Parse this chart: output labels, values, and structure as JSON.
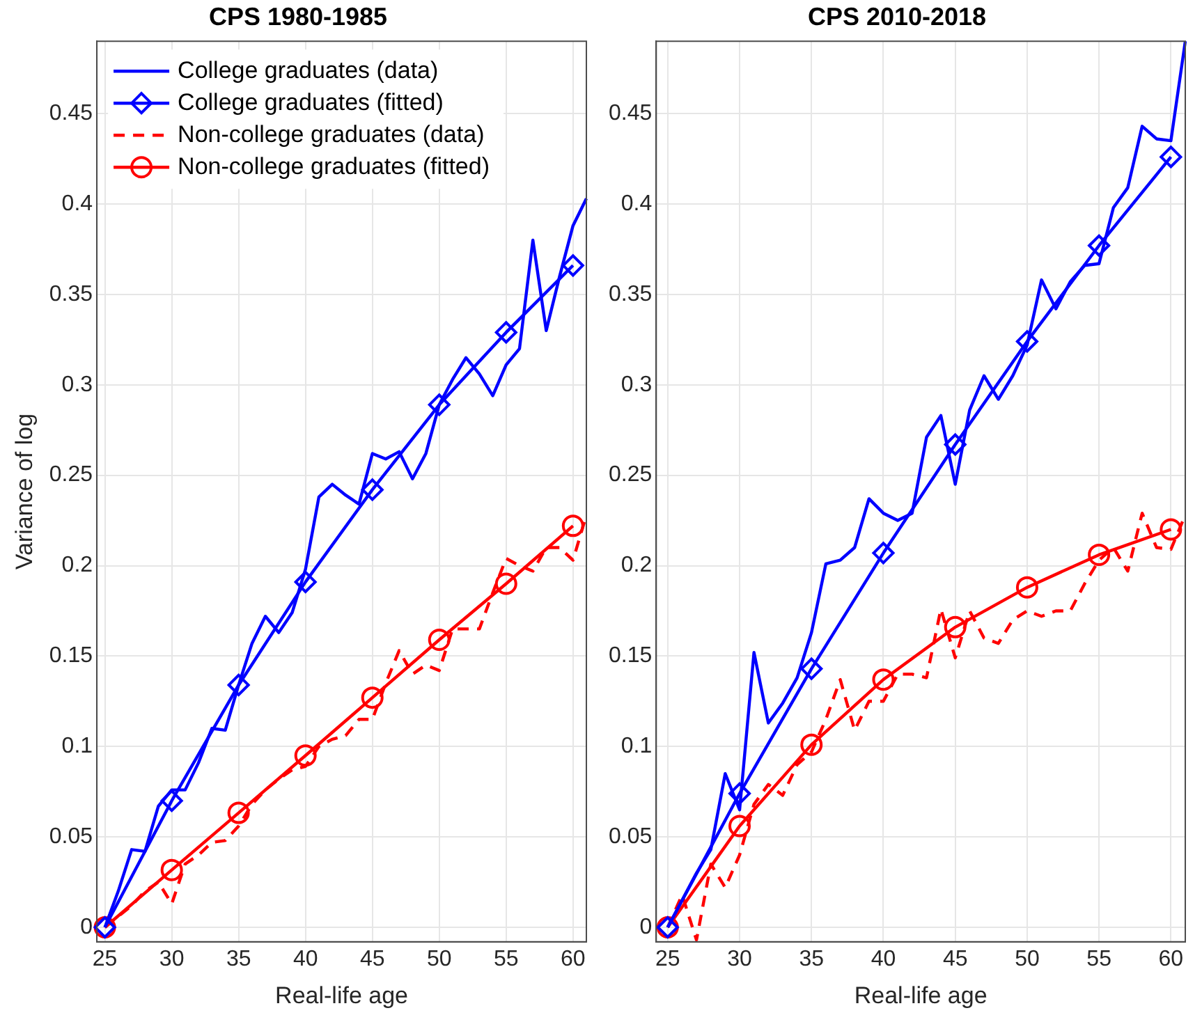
{
  "chart_data": [
    {
      "type": "line",
      "title": "CPS 1980-1985",
      "xlabel": "Real-life age",
      "ylabel": "Variance of log",
      "xlim": [
        24.4,
        61
      ],
      "ylim": [
        -0.008,
        0.49
      ],
      "xticks": [
        25,
        30,
        35,
        40,
        45,
        50,
        55,
        60
      ],
      "yticks": [
        0,
        0.05,
        0.1,
        0.15,
        0.2,
        0.25,
        0.3,
        0.35,
        0.4,
        0.45
      ],
      "grid": true,
      "legend": "top left",
      "series": [
        {
          "name": "College graduates (data)",
          "color": "#0000ff",
          "marker": "none",
          "line_style": "solid",
          "x": [
            25,
            26,
            27,
            28,
            29,
            30,
            31,
            32,
            33,
            34,
            35,
            36,
            37,
            38,
            39,
            40,
            41,
            42,
            43,
            44,
            45,
            46,
            47,
            48,
            49,
            50,
            51,
            52,
            53,
            54,
            55,
            56,
            57,
            58,
            59,
            60,
            61
          ],
          "values": [
            0,
            0.02,
            0.043,
            0.042,
            0.067,
            0.076,
            0.076,
            0.091,
            0.11,
            0.109,
            0.134,
            0.157,
            0.172,
            0.163,
            0.174,
            0.198,
            0.238,
            0.245,
            0.239,
            0.234,
            0.262,
            0.259,
            0.263,
            0.248,
            0.262,
            0.289,
            0.303,
            0.315,
            0.306,
            0.294,
            0.311,
            0.32,
            0.38,
            0.33,
            0.36,
            0.388,
            0.403
          ]
        },
        {
          "name": "College graduates (fitted)",
          "color": "#0000ff",
          "marker": "diamond",
          "line_style": "solid",
          "x": [
            25,
            30,
            35,
            40,
            45,
            50,
            55,
            60
          ],
          "values": [
            0,
            0.07,
            0.134,
            0.191,
            0.242,
            0.289,
            0.329,
            0.366
          ]
        },
        {
          "name": "Non-college graduates (data)",
          "color": "#ff0000",
          "marker": "none",
          "line_style": "dashed",
          "x": [
            25,
            26,
            27,
            28,
            29,
            30,
            31,
            32,
            33,
            34,
            35,
            36,
            37,
            38,
            39,
            40,
            41,
            42,
            43,
            44,
            45,
            46,
            47,
            48,
            49,
            50,
            51,
            52,
            53,
            54,
            55,
            56,
            57,
            58,
            59,
            60,
            61
          ],
          "values": [
            0,
            0.006,
            0.012,
            0.02,
            0.025,
            0.013,
            0.035,
            0.04,
            0.047,
            0.048,
            0.056,
            0.068,
            0.076,
            0.082,
            0.087,
            0.089,
            0.1,
            0.104,
            0.106,
            0.115,
            0.115,
            0.135,
            0.153,
            0.14,
            0.145,
            0.142,
            0.165,
            0.165,
            0.165,
            0.185,
            0.204,
            0.2,
            0.197,
            0.21,
            0.21,
            0.203,
            0.228
          ]
        },
        {
          "name": "Non-college graduates (fitted)",
          "color": "#ff0000",
          "marker": "circle",
          "line_style": "solid",
          "x": [
            25,
            30,
            35,
            40,
            45,
            50,
            55,
            60
          ],
          "values": [
            0,
            0.0317,
            0.0633,
            0.095,
            0.127,
            0.159,
            0.19,
            0.222
          ]
        }
      ]
    },
    {
      "type": "line",
      "title": "CPS 2010-2018",
      "xlabel": "Real-life age",
      "xlim": [
        24.2,
        61
      ],
      "ylim": [
        -0.008,
        0.49
      ],
      "xticks": [
        25,
        30,
        35,
        40,
        45,
        50,
        55,
        60
      ],
      "yticks": [
        0,
        0.05,
        0.1,
        0.15,
        0.2,
        0.25,
        0.3,
        0.35,
        0.4,
        0.45
      ],
      "grid": true,
      "series": [
        {
          "color": "#0000ff",
          "marker": "none",
          "line_style": "solid",
          "x": [
            25,
            26,
            27,
            28,
            29,
            30,
            31,
            32,
            33,
            34,
            35,
            36,
            37,
            38,
            39,
            40,
            41,
            42,
            43,
            44,
            45,
            46,
            47,
            48,
            49,
            50,
            51,
            52,
            53,
            54,
            55,
            56,
            57,
            58,
            59,
            60,
            61
          ],
          "values": [
            0,
            0.015,
            0.03,
            0.043,
            0.085,
            0.065,
            0.152,
            0.113,
            0.124,
            0.138,
            0.163,
            0.201,
            0.203,
            0.21,
            0.237,
            0.229,
            0.225,
            0.229,
            0.271,
            0.283,
            0.245,
            0.286,
            0.305,
            0.292,
            0.305,
            0.322,
            0.358,
            0.342,
            0.357,
            0.366,
            0.367,
            0.398,
            0.409,
            0.443,
            0.436,
            0.435,
            0.49
          ]
        },
        {
          "color": "#0000ff",
          "marker": "diamond",
          "line_style": "solid",
          "x": [
            25,
            30,
            35,
            40,
            45,
            50,
            55,
            60
          ],
          "values": [
            0,
            0.074,
            0.143,
            0.207,
            0.267,
            0.324,
            0.377,
            0.426
          ]
        },
        {
          "color": "#ff0000",
          "marker": "none",
          "line_style": "dashed",
          "x": [
            25,
            26,
            27,
            28,
            29,
            30,
            31,
            32,
            33,
            34,
            35,
            36,
            37,
            38,
            39,
            40,
            41,
            42,
            43,
            44,
            45,
            46,
            47,
            48,
            49,
            50,
            51,
            52,
            53,
            54,
            55,
            56,
            57,
            58,
            59,
            60,
            61
          ],
          "values": [
            0,
            0.018,
            -0.007,
            0.035,
            0.022,
            0.04,
            0.068,
            0.079,
            0.073,
            0.09,
            0.097,
            0.115,
            0.137,
            0.109,
            0.125,
            0.125,
            0.14,
            0.14,
            0.138,
            0.176,
            0.149,
            0.175,
            0.16,
            0.157,
            0.17,
            0.175,
            0.172,
            0.175,
            0.175,
            0.19,
            0.203,
            0.21,
            0.197,
            0.229,
            0.21,
            0.209,
            0.228
          ]
        },
        {
          "color": "#ff0000",
          "marker": "circle",
          "line_style": "solid",
          "x": [
            25,
            30,
            35,
            40,
            45,
            50,
            55,
            60
          ],
          "values": [
            0,
            0.056,
            0.101,
            0.137,
            0.166,
            0.188,
            0.206,
            0.22
          ]
        }
      ]
    }
  ]
}
